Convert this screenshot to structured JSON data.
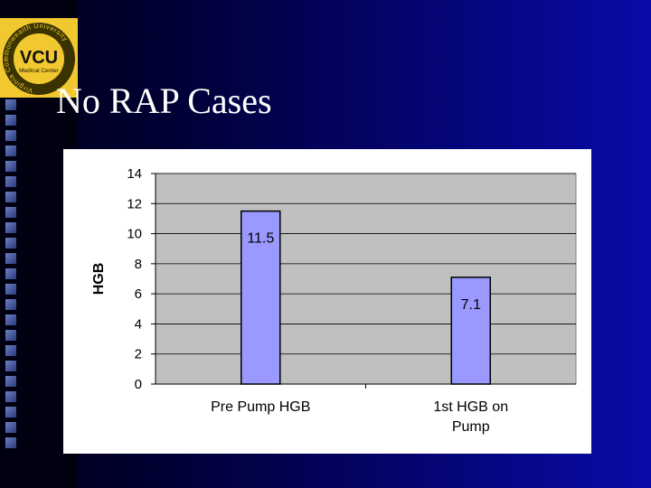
{
  "slide": {
    "title": "No RAP Cases"
  },
  "logo": {
    "text": "VCU",
    "subtext": "Medical Center",
    "ring_text": "Virginia Commonwealth University",
    "color": "#f2c830"
  },
  "colors": {
    "bar_fill": "#9999ff",
    "plot_bg": "#c0c0c0",
    "accent": "#0a0aa8"
  },
  "chart_data": {
    "type": "bar",
    "categories": [
      "Pre Pump HGB",
      "1st HGB on Pump"
    ],
    "category_lines": [
      [
        "Pre Pump HGB"
      ],
      [
        "1st HGB on",
        "Pump"
      ]
    ],
    "values": [
      11.5,
      7.1
    ],
    "data_labels": [
      "11.5",
      "7.1"
    ],
    "title": "",
    "xlabel": "",
    "ylabel": "HGB",
    "ylim": [
      0,
      14
    ],
    "yticks": [
      0,
      2,
      4,
      6,
      8,
      10,
      12,
      14
    ],
    "grid": true,
    "legend": "none"
  }
}
